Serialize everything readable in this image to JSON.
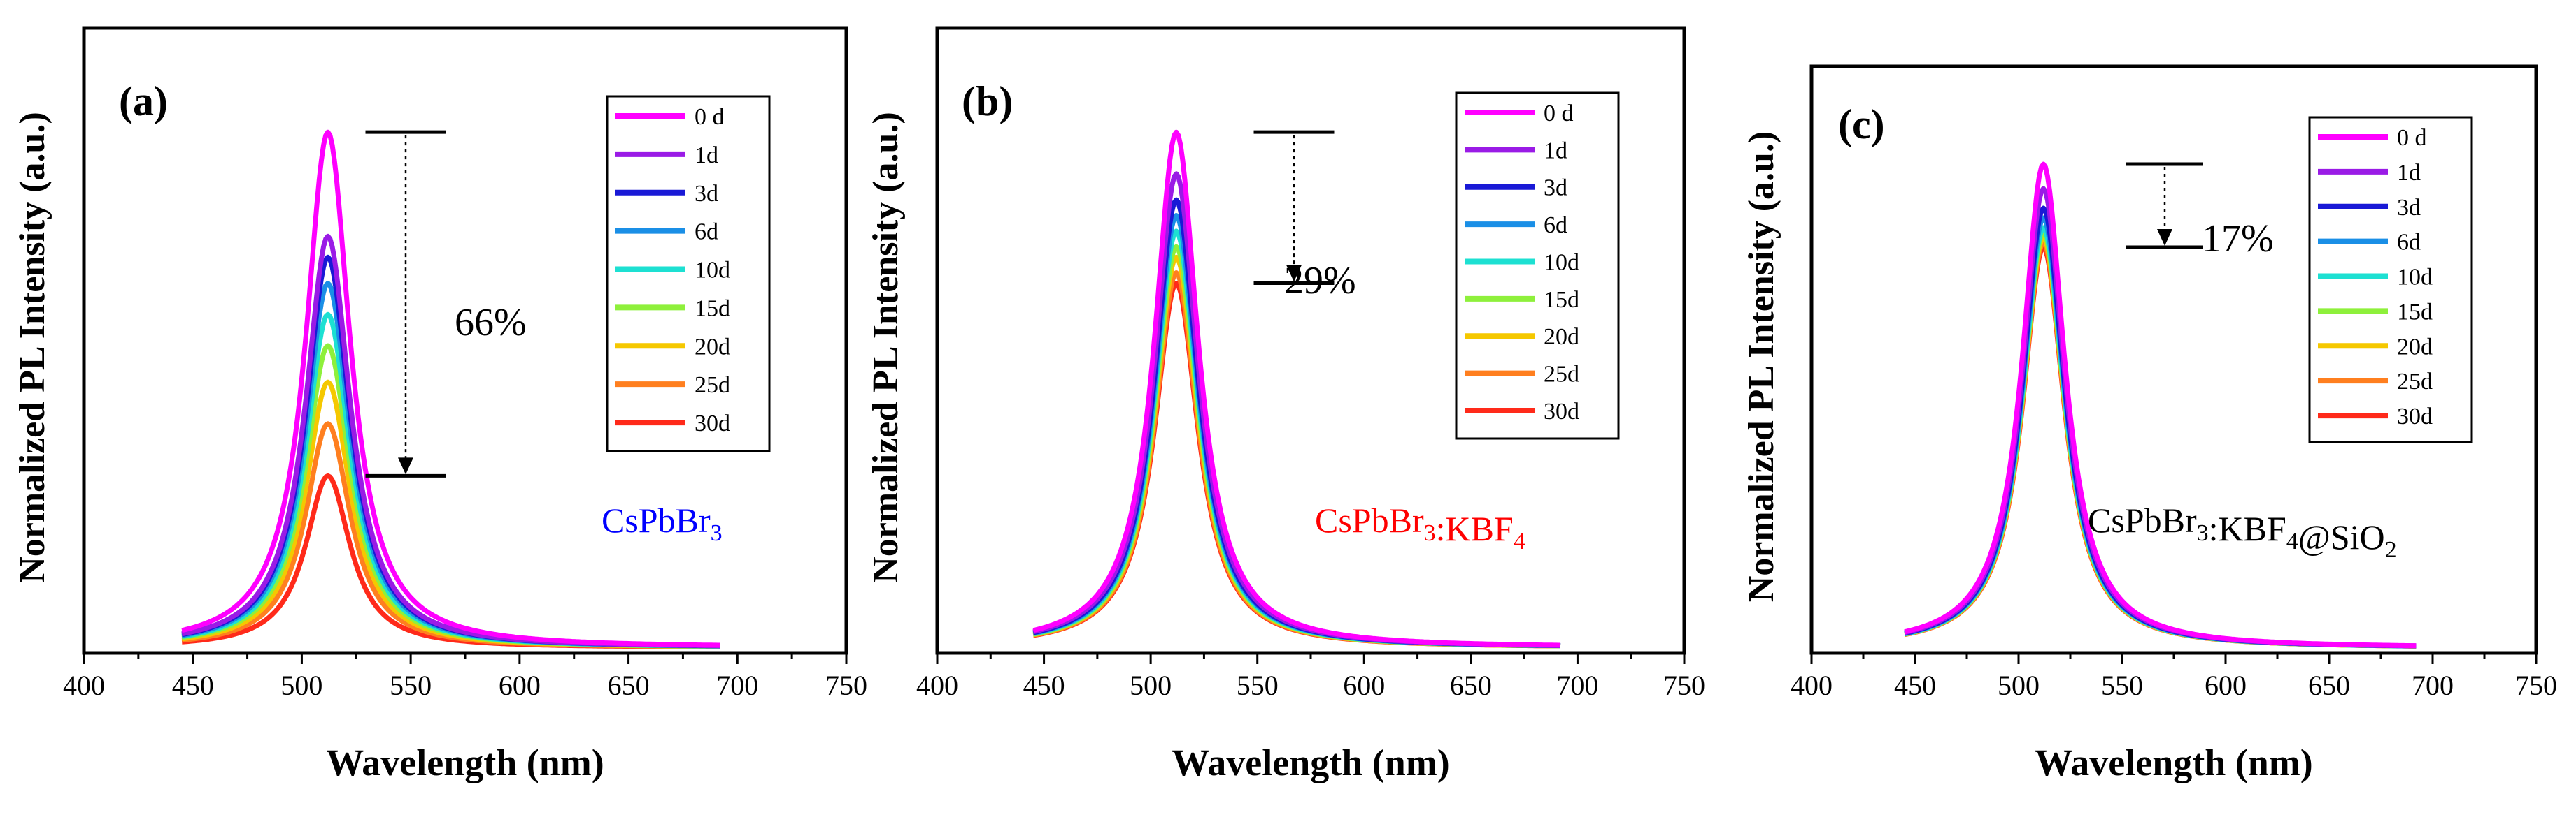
{
  "figure": {
    "title": ""
  },
  "legend_labels": [
    "0 d",
    "1d",
    "3d",
    "6d",
    "10d",
    "15d",
    "20d",
    "25d",
    "30d"
  ],
  "series_colors": [
    "#ff00ff",
    "#9a1be6",
    "#1919d6",
    "#1a8fe6",
    "#1de0d2",
    "#8ef03b",
    "#f5c800",
    "#ff7f1f",
    "#ff2a1a"
  ],
  "chart_data": [
    {
      "type": "line",
      "panel": "(a)",
      "sample": "CsPbBr",
      "sample_sub": "3",
      "sample_color": "#0000ff",
      "xlabel": "Wavelength (nm)",
      "ylabel": "Normalized PL Intensity (a.u.)",
      "xlim": [
        400,
        750
      ],
      "ylim": [
        0,
        1.2
      ],
      "xticks": [
        400,
        450,
        500,
        550,
        600,
        650,
        700,
        750
      ],
      "peak_nm": 512,
      "x_range": [
        445,
        692
      ],
      "series": [
        {
          "name": "0 d",
          "peak": 1.0
        },
        {
          "name": "1d",
          "peak": 0.8
        },
        {
          "name": "3d",
          "peak": 0.76
        },
        {
          "name": "6d",
          "peak": 0.71
        },
        {
          "name": "10d",
          "peak": 0.65
        },
        {
          "name": "15d",
          "peak": 0.59
        },
        {
          "name": "20d",
          "peak": 0.52
        },
        {
          "name": "25d",
          "peak": 0.44
        },
        {
          "name": "30d",
          "peak": 0.34
        }
      ],
      "annotation": {
        "text": "66%",
        "from": 1.0,
        "to": 0.34
      }
    },
    {
      "type": "line",
      "panel": "(b)",
      "sample": "CsPbBr",
      "sample_sub": "3",
      "sample_tail": ":KBF",
      "sample_tail_sub": "4",
      "sample_color": "#ff0000",
      "xlabel": "Wavelength (nm)",
      "ylabel": "Normalized PL Intensity (a.u.)",
      "xlim": [
        400,
        750
      ],
      "ylim": [
        0,
        1.2
      ],
      "xticks": [
        400,
        450,
        500,
        550,
        600,
        650,
        700,
        750
      ],
      "peak_nm": 512,
      "x_range": [
        445,
        692
      ],
      "series": [
        {
          "name": "0 d",
          "peak": 1.0
        },
        {
          "name": "1d",
          "peak": 0.92
        },
        {
          "name": "3d",
          "peak": 0.87
        },
        {
          "name": "6d",
          "peak": 0.84
        },
        {
          "name": "10d",
          "peak": 0.81
        },
        {
          "name": "15d",
          "peak": 0.78
        },
        {
          "name": "20d",
          "peak": 0.76
        },
        {
          "name": "25d",
          "peak": 0.73
        },
        {
          "name": "30d",
          "peak": 0.71
        }
      ],
      "annotation": {
        "text": "29%",
        "from": 1.0,
        "to": 0.71
      }
    },
    {
      "type": "line",
      "panel": "(c)",
      "sample": "CsPbBr",
      "sample_sub": "3",
      "sample_tail": ":KBF",
      "sample_tail_sub": "4",
      "sample_tail2": "@SiO",
      "sample_tail2_sub": "2",
      "sample_color": "#000000",
      "xlabel": "Wavelength (nm)",
      "ylabel": "Normalized PL Intensity (a.u.)",
      "xlim": [
        400,
        750
      ],
      "ylim": [
        0,
        1.2
      ],
      "xticks": [
        400,
        450,
        500,
        550,
        600,
        650,
        700,
        750
      ],
      "peak_nm": 512,
      "x_range": [
        445,
        692
      ],
      "series": [
        {
          "name": "0 d",
          "peak": 1.0
        },
        {
          "name": "1d",
          "peak": 0.95
        },
        {
          "name": "3d",
          "peak": 0.91
        },
        {
          "name": "6d",
          "peak": 0.89
        },
        {
          "name": "10d",
          "peak": 0.87
        },
        {
          "name": "15d",
          "peak": 0.86
        },
        {
          "name": "20d",
          "peak": 0.85
        },
        {
          "name": "25d",
          "peak": 0.84
        },
        {
          "name": "30d",
          "peak": 0.83
        }
      ],
      "annotation": {
        "text": "17%",
        "from": 1.0,
        "to": 0.83
      }
    }
  ]
}
